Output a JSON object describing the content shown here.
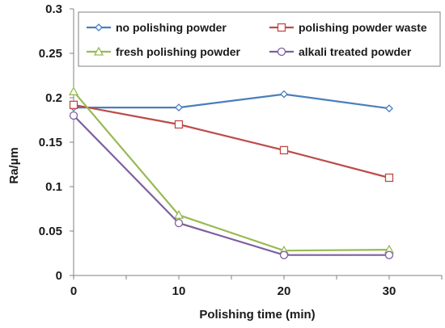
{
  "chart_data": {
    "type": "line",
    "xlabel": "Polishing time (min)",
    "ylabel": "Ra/µm",
    "xlim": [
      0,
      35
    ],
    "ylim": [
      0,
      0.3
    ],
    "xticks": [
      0,
      10,
      20,
      30
    ],
    "xtick_labels": [
      "0",
      "10",
      "20",
      "30"
    ],
    "yticks": [
      0,
      0.05,
      0.1,
      0.15,
      0.2,
      0.25,
      0.3
    ],
    "ytick_labels": [
      "0",
      "0.05",
      "0.1",
      "0.15",
      "0.2",
      "0.25",
      "0.3"
    ],
    "grid": false,
    "legend_position": "top-inside",
    "x": [
      0,
      10,
      20,
      30
    ],
    "series": [
      {
        "name": "no polishing powder",
        "values": [
          0.189,
          0.189,
          0.204,
          0.188
        ],
        "color": "#4a7ebb",
        "marker": "diamond"
      },
      {
        "name": "polishing powder waste",
        "values": [
          0.192,
          0.17,
          0.141,
          0.11
        ],
        "color": "#be4b48",
        "marker": "square"
      },
      {
        "name": "fresh polishing powder",
        "values": [
          0.207,
          0.068,
          0.028,
          0.029
        ],
        "color": "#98b954",
        "marker": "triangle"
      },
      {
        "name": "alkali treated powder",
        "values": [
          0.18,
          0.059,
          0.023,
          0.023
        ],
        "color": "#7d60a0",
        "marker": "circle"
      }
    ]
  }
}
